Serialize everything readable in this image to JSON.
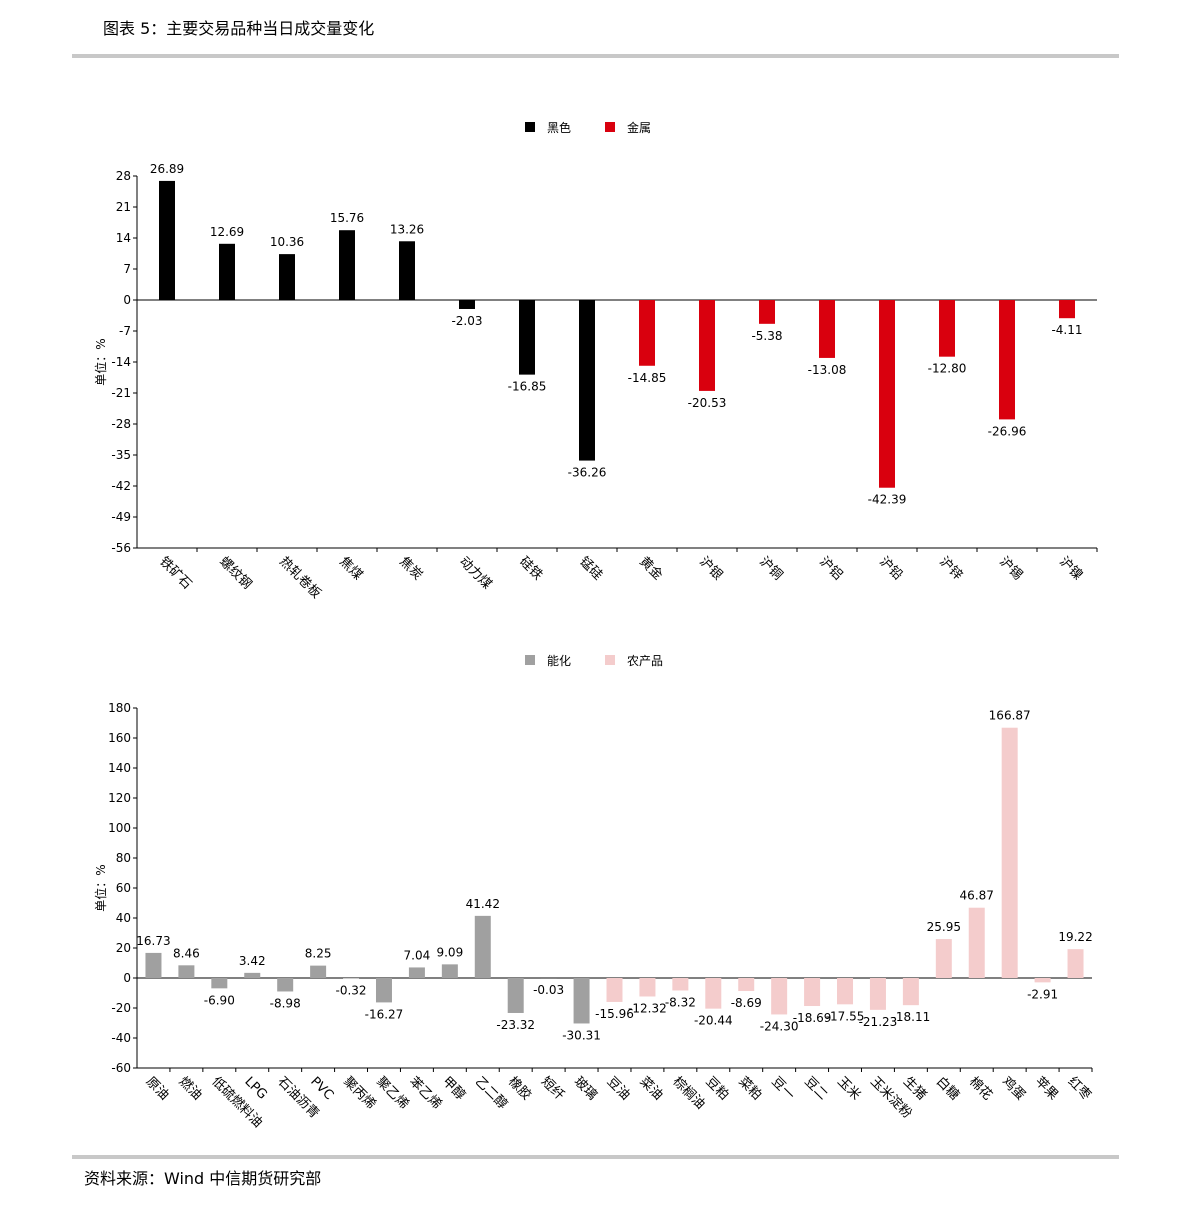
{
  "header": {
    "title": "图表 5：主要交易品种当日成交量变化"
  },
  "footer": {
    "source": "资料来源：Wind 中信期货研究部"
  },
  "chart_data": [
    {
      "type": "bar",
      "y_label": "单位：%",
      "categories": [
        "铁矿石",
        "螺纹钢",
        "热轧卷板",
        "焦煤",
        "焦炭",
        "动力煤",
        "硅铁",
        "锰硅",
        "黄金",
        "沪银",
        "沪铜",
        "沪铝",
        "沪铅",
        "沪锌",
        "沪锡",
        "沪镍"
      ],
      "series": [
        {
          "name": "黑色",
          "color": "#000000",
          "values": [
            26.89,
            12.69,
            10.36,
            15.76,
            13.26,
            -2.03,
            -16.85,
            -36.26,
            null,
            null,
            null,
            null,
            null,
            null,
            null,
            null
          ],
          "value_labels": [
            "26.89",
            "12.69",
            "10.36",
            "15.76",
            "13.26",
            "-2.03",
            "-16.85",
            "-36.26",
            null,
            null,
            null,
            null,
            null,
            null,
            null,
            null
          ]
        },
        {
          "name": "金属",
          "color": "#d9000e",
          "values": [
            null,
            null,
            null,
            null,
            null,
            null,
            null,
            null,
            -14.85,
            -20.53,
            -5.38,
            -13.08,
            -42.39,
            -12.8,
            -26.96,
            -4.11
          ],
          "value_labels": [
            null,
            null,
            null,
            null,
            null,
            null,
            null,
            null,
            "-14.85",
            "-20.53",
            "-5.38",
            "-13.08",
            "-42.39",
            "-12.80",
            "-26.96",
            "-4.11"
          ]
        }
      ],
      "ylim": [
        -56,
        28
      ],
      "yticks": [
        -56,
        -49,
        -42,
        -35,
        -28,
        -21,
        -14,
        -7,
        0,
        7,
        14,
        21,
        28
      ],
      "legend": "top"
    },
    {
      "type": "bar",
      "y_label": "单位：%",
      "categories": [
        "原油",
        "燃油",
        "低硫燃料油",
        "LPG",
        "石油沥青",
        "PVC",
        "聚丙烯",
        "聚乙烯",
        "苯乙烯",
        "甲醇",
        "乙二醇",
        "橡胶",
        "短纤",
        "玻璃",
        "豆油",
        "菜油",
        "棕榈油",
        "豆粕",
        "菜粕",
        "豆一",
        "豆二",
        "玉米",
        "玉米淀粉",
        "生猪",
        "白糖",
        "棉花",
        "鸡蛋",
        "苹果",
        "红枣"
      ],
      "series": [
        {
          "name": "能化",
          "color": "#a0a0a0",
          "values": [
            16.73,
            8.46,
            -6.9,
            3.42,
            -8.98,
            8.25,
            -0.32,
            -16.27,
            7.04,
            9.09,
            41.42,
            -23.32,
            -0.03,
            -30.31,
            null,
            null,
            null,
            null,
            null,
            null,
            null,
            null,
            null,
            null,
            null,
            null,
            null,
            null,
            null
          ],
          "value_labels": [
            "16.73",
            "8.46",
            "-6.90",
            "3.42",
            "-8.98",
            "8.25",
            "-0.32",
            "-16.27",
            "7.04",
            "9.09",
            "41.42",
            "-23.32",
            "-0.03",
            "-30.31",
            null,
            null,
            null,
            null,
            null,
            null,
            null,
            null,
            null,
            null,
            null,
            null,
            null,
            null,
            null
          ]
        },
        {
          "name": "农产品",
          "color": "#f4cccc",
          "values": [
            null,
            null,
            null,
            null,
            null,
            null,
            null,
            null,
            null,
            null,
            null,
            null,
            null,
            null,
            -15.96,
            -12.32,
            -8.32,
            -20.44,
            -8.69,
            -24.3,
            -18.69,
            -17.55,
            -21.23,
            -18.11,
            25.95,
            46.87,
            166.87,
            -2.91,
            19.22
          ],
          "value_labels": [
            null,
            null,
            null,
            null,
            null,
            null,
            null,
            null,
            null,
            null,
            null,
            null,
            null,
            null,
            "-15.96",
            "-12.32",
            "-8.32",
            "-20.44",
            "-8.69",
            "-24.30",
            "-18.69",
            "-17.55",
            "-21.23",
            "-18.11",
            "25.95",
            "46.87",
            "166.87",
            "-2.91",
            "19.22"
          ]
        }
      ],
      "ylim": [
        -60,
        180
      ],
      "yticks": [
        -60,
        -40,
        -20,
        0,
        20,
        40,
        60,
        80,
        100,
        120,
        140,
        160,
        180
      ],
      "legend": "top"
    }
  ]
}
